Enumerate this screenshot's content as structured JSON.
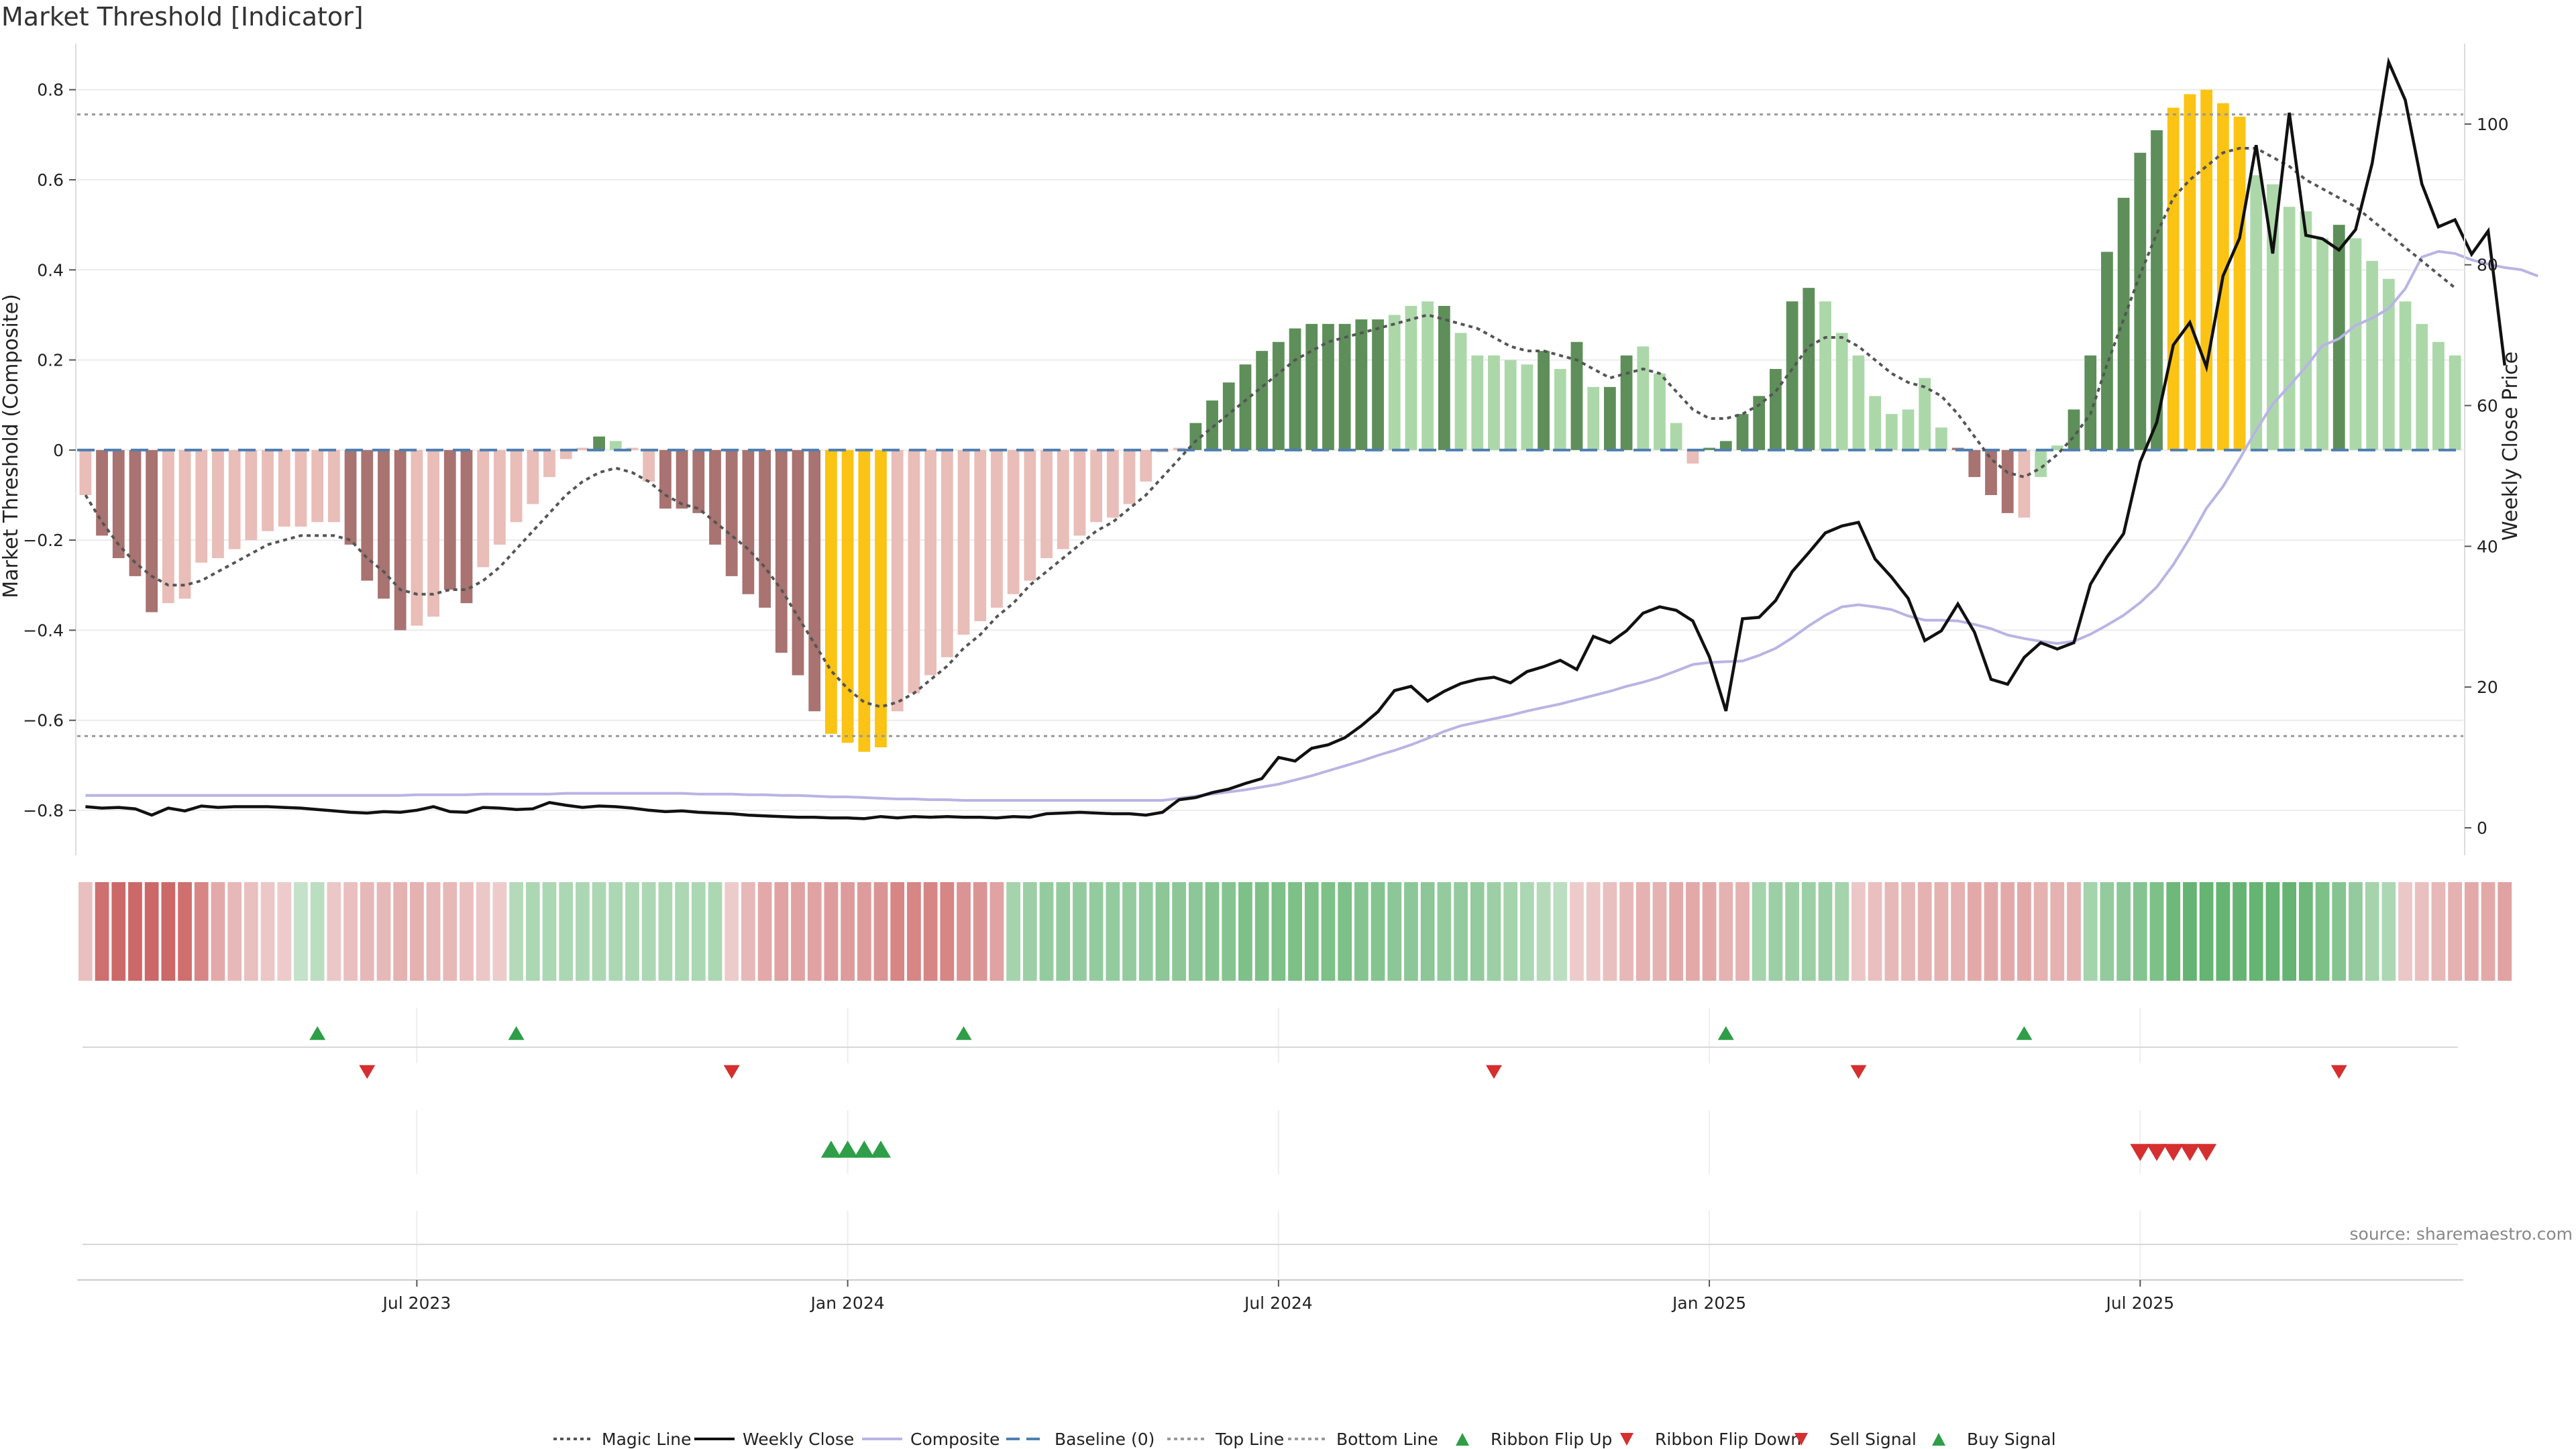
{
  "title": "Market Threshold [Indicator]",
  "source": "source: sharemaestro.com",
  "left_axis": {
    "label": "Market Threshold (Composite)",
    "ticks": [
      "0.8",
      "0.6",
      "0.4",
      "0.2",
      "0",
      "−0.2",
      "−0.4",
      "−0.6",
      "−0.8"
    ],
    "tick_values": [
      0.8,
      0.6,
      0.4,
      0.2,
      0,
      -0.2,
      -0.4,
      -0.6,
      -0.8
    ],
    "ylim": [
      -0.87,
      0.88
    ]
  },
  "right_axis": {
    "label": "Weekly Close Price",
    "ticks": [
      "100",
      "80",
      "60",
      "40",
      "20",
      "0"
    ],
    "tick_values": [
      100,
      80,
      60,
      40,
      20,
      0
    ],
    "ylim": [
      -2,
      110
    ]
  },
  "x_axis": {
    "ticks": [
      "Jul 2023",
      "Jan 2024",
      "Jul 2024",
      "Jan 2025",
      "Jul 2025"
    ],
    "tick_index": [
      20.5,
      46.5,
      72.5,
      98.5,
      124.5
    ]
  },
  "legend": [
    {
      "label": "Magic Line",
      "kind": "dotted",
      "color": "#555555"
    },
    {
      "label": "Weekly Close",
      "kind": "solid",
      "color": "#111111"
    },
    {
      "label": "Composite",
      "kind": "solid",
      "color": "#b8b4e4"
    },
    {
      "label": "Baseline (0)",
      "kind": "dashed",
      "color": "#4f7fb0"
    },
    {
      "label": "Top Line",
      "kind": "dotted",
      "color": "#999999"
    },
    {
      "label": "Bottom Line",
      "kind": "dotted",
      "color": "#999999"
    },
    {
      "label": "Ribbon Flip Up",
      "kind": "tri-up",
      "color": "#2e9e48"
    },
    {
      "label": "Ribbon Flip Down",
      "kind": "tri-down",
      "color": "#d62f2f"
    },
    {
      "label": "Sell Signal",
      "kind": "tri-down",
      "color": "#d62f2f"
    },
    {
      "label": "Buy Signal",
      "kind": "tri-up",
      "color": "#2e9e48"
    }
  ],
  "colors": {
    "dark_red": "#a87370",
    "light_red": "#e9bdb8",
    "dark_green": "#5e8f5a",
    "light_green": "#acd8a9",
    "gold": "#fbc313",
    "magic": "#555555",
    "close": "#111111",
    "composite": "#b8b4e4",
    "baseline": "#4f7fb0",
    "grid": "#ececec"
  },
  "chart_data": {
    "type": "bar",
    "top_line": 0.745,
    "bottom_line": -0.635,
    "baseline": 0,
    "histogram": [
      -0.1,
      -0.19,
      -0.24,
      -0.28,
      -0.36,
      -0.34,
      -0.33,
      -0.25,
      -0.24,
      -0.22,
      -0.2,
      -0.18,
      -0.17,
      -0.17,
      -0.16,
      -0.16,
      -0.21,
      -0.29,
      -0.33,
      -0.4,
      -0.39,
      -0.37,
      -0.31,
      -0.34,
      -0.26,
      -0.21,
      -0.16,
      -0.12,
      -0.06,
      -0.02,
      0.005,
      0.03,
      0.02,
      0.005,
      -0.07,
      -0.13,
      -0.13,
      -0.14,
      -0.21,
      -0.28,
      -0.32,
      -0.35,
      -0.45,
      -0.5,
      -0.58,
      -0.63,
      -0.65,
      -0.67,
      -0.66,
      -0.58,
      -0.54,
      -0.5,
      -0.46,
      -0.41,
      -0.38,
      -0.35,
      -0.32,
      -0.29,
      -0.24,
      -0.22,
      -0.19,
      -0.16,
      -0.15,
      -0.12,
      -0.07,
      -0.005,
      0.005,
      0.06,
      0.11,
      0.15,
      0.19,
      0.22,
      0.24,
      0.27,
      0.28,
      0.28,
      0.28,
      0.29,
      0.29,
      0.3,
      0.32,
      0.33,
      0.32,
      0.26,
      0.21,
      0.21,
      0.2,
      0.19,
      0.22,
      0.18,
      0.24,
      0.14,
      0.14,
      0.21,
      0.23,
      0.17,
      0.06,
      -0.03,
      0.005,
      0.02,
      0.08,
      0.12,
      0.18,
      0.33,
      0.36,
      0.33,
      0.26,
      0.21,
      0.12,
      0.08,
      0.09,
      0.16,
      0.05,
      0.005,
      -0.06,
      -0.1,
      -0.14,
      -0.15,
      -0.06,
      0.01,
      0.09,
      0.21,
      0.44,
      0.56,
      0.66,
      0.71,
      0.76,
      0.79,
      0.8,
      0.77,
      0.74,
      0.61,
      0.59,
      0.54,
      0.53,
      0.47,
      0.5,
      0.47,
      0.42,
      0.38,
      0.33,
      0.28,
      0.24,
      0.21
    ],
    "histogram_colors": [
      "L",
      "D",
      "D",
      "D",
      "D",
      "L",
      "L",
      "L",
      "L",
      "L",
      "L",
      "L",
      "L",
      "L",
      "L",
      "L",
      "D",
      "D",
      "D",
      "D",
      "L",
      "L",
      "D",
      "D",
      "L",
      "L",
      "L",
      "L",
      "L",
      "L",
      "L",
      "DG",
      "LG",
      "L",
      "L",
      "D",
      "D",
      "D",
      "D",
      "D",
      "D",
      "D",
      "D",
      "D",
      "D",
      "Y",
      "Y",
      "Y",
      "Y",
      "L",
      "L",
      "L",
      "L",
      "L",
      "L",
      "L",
      "L",
      "L",
      "L",
      "L",
      "L",
      "L",
      "L",
      "L",
      "L",
      "L",
      "L",
      "DG",
      "DG",
      "DG",
      "DG",
      "DG",
      "DG",
      "DG",
      "DG",
      "DG",
      "DG",
      "DG",
      "DG",
      "LG",
      "LG",
      "LG",
      "DG",
      "LG",
      "LG",
      "LG",
      "LG",
      "LG",
      "DG",
      "LG",
      "DG",
      "LG",
      "DG",
      "DG",
      "LG",
      "LG",
      "LG",
      "L",
      "DG",
      "DG",
      "DG",
      "DG",
      "DG",
      "DG",
      "DG",
      "LG",
      "LG",
      "LG",
      "LG",
      "LG",
      "LG",
      "LG",
      "LG",
      "D",
      "D",
      "D",
      "D",
      "L",
      "LG",
      "LG",
      "DG",
      "DG",
      "DG",
      "DG",
      "DG",
      "DG",
      "Y",
      "Y",
      "Y",
      "Y",
      "Y",
      "LG",
      "LG",
      "LG",
      "LG",
      "LG",
      "DG",
      "LG",
      "LG",
      "LG",
      "LG",
      "LG",
      "LG",
      "LG",
      "LG"
    ],
    "magic_line": [
      -0.1,
      -0.16,
      -0.21,
      -0.25,
      -0.28,
      -0.3,
      -0.3,
      -0.29,
      -0.27,
      -0.25,
      -0.23,
      -0.21,
      -0.2,
      -0.19,
      -0.19,
      -0.19,
      -0.2,
      -0.24,
      -0.27,
      -0.31,
      -0.32,
      -0.32,
      -0.31,
      -0.31,
      -0.29,
      -0.26,
      -0.22,
      -0.18,
      -0.14,
      -0.1,
      -0.07,
      -0.05,
      -0.04,
      -0.05,
      -0.07,
      -0.1,
      -0.12,
      -0.13,
      -0.16,
      -0.19,
      -0.22,
      -0.26,
      -0.31,
      -0.37,
      -0.43,
      -0.49,
      -0.53,
      -0.56,
      -0.57,
      -0.56,
      -0.54,
      -0.51,
      -0.48,
      -0.44,
      -0.41,
      -0.37,
      -0.34,
      -0.3,
      -0.27,
      -0.24,
      -0.21,
      -0.18,
      -0.16,
      -0.13,
      -0.1,
      -0.06,
      -0.02,
      0.02,
      0.05,
      0.08,
      0.11,
      0.14,
      0.17,
      0.2,
      0.22,
      0.24,
      0.25,
      0.26,
      0.27,
      0.28,
      0.29,
      0.3,
      0.29,
      0.28,
      0.27,
      0.25,
      0.23,
      0.22,
      0.22,
      0.21,
      0.2,
      0.18,
      0.16,
      0.17,
      0.18,
      0.17,
      0.13,
      0.09,
      0.07,
      0.07,
      0.08,
      0.1,
      0.13,
      0.18,
      0.23,
      0.25,
      0.25,
      0.23,
      0.2,
      0.17,
      0.15,
      0.14,
      0.12,
      0.08,
      0.03,
      -0.02,
      -0.05,
      -0.06,
      -0.04,
      -0.01,
      0.03,
      0.08,
      0.19,
      0.29,
      0.39,
      0.48,
      0.56,
      0.6,
      0.63,
      0.66,
      0.67,
      0.67,
      0.65,
      0.63,
      0.6,
      0.58,
      0.56,
      0.54,
      0.51,
      0.48,
      0.45,
      0.42,
      0.39,
      0.36
    ],
    "weekly_close": [
      3,
      2.8,
      2.9,
      2.7,
      1.8,
      2.8,
      2.4,
      3.1,
      2.9,
      3,
      3,
      3,
      2.9,
      2.8,
      2.6,
      2.4,
      2.2,
      2.1,
      2.3,
      2.2,
      2.5,
      3,
      2.3,
      2.2,
      2.9,
      2.8,
      2.6,
      2.7,
      3.6,
      3.2,
      2.9,
      3.1,
      3,
      2.8,
      2.5,
      2.3,
      2.4,
      2.2,
      2.1,
      2,
      1.8,
      1.7,
      1.6,
      1.5,
      1.5,
      1.4,
      1.4,
      1.3,
      1.6,
      1.4,
      1.6,
      1.5,
      1.6,
      1.5,
      1.5,
      1.4,
      1.6,
      1.5,
      2,
      2.1,
      2.2,
      2.1,
      2,
      2,
      1.8,
      2.2,
      4,
      4.3,
      5,
      5.5,
      6.3,
      7,
      10,
      9.5,
      11.3,
      11.8,
      12.8,
      14.5,
      16.5,
      19.5,
      20.1,
      18,
      19.4,
      20.5,
      21.1,
      21.4,
      20.6,
      22.2,
      22.9,
      23.8,
      22.5,
      27.2,
      26.3,
      28,
      30.5,
      31.4,
      30.9,
      29.4,
      24.3,
      16.6,
      29.7,
      29.9,
      32.3,
      36.4,
      39.1,
      41.9,
      42.9,
      43.4,
      38.2,
      35.6,
      32.6,
      26.6,
      28,
      31.8,
      27.8,
      21.1,
      20.4,
      24.2,
      26.3,
      25.4,
      26.3,
      34.6,
      38.5,
      41.8,
      52,
      57.6,
      68.6,
      71.8,
      65.5,
      78.4,
      83.8,
      97,
      81.6,
      101.6,
      84.2,
      83.7,
      82.1,
      85,
      94.4,
      108.8,
      103.4,
      91.5,
      85.4,
      86.4,
      81.5,
      84.8,
      65.7
    ],
    "composite_price": [
      4.6,
      4.6,
      4.6,
      4.6,
      4.6,
      4.6,
      4.6,
      4.6,
      4.6,
      4.6,
      4.6,
      4.6,
      4.6,
      4.6,
      4.6,
      4.6,
      4.6,
      4.6,
      4.6,
      4.6,
      4.7,
      4.7,
      4.7,
      4.7,
      4.8,
      4.8,
      4.8,
      4.8,
      4.8,
      4.9,
      4.9,
      4.9,
      4.9,
      4.9,
      4.9,
      4.9,
      4.9,
      4.8,
      4.8,
      4.8,
      4.7,
      4.7,
      4.6,
      4.6,
      4.5,
      4.4,
      4.4,
      4.3,
      4.2,
      4.1,
      4.1,
      4,
      4,
      3.9,
      3.9,
      3.9,
      3.9,
      3.9,
      3.9,
      3.9,
      3.9,
      3.9,
      3.9,
      3.9,
      3.9,
      3.9,
      4.2,
      4.5,
      4.8,
      5.1,
      5.4,
      5.8,
      6.2,
      6.8,
      7.4,
      8.1,
      8.8,
      9.5,
      10.3,
      11,
      11.8,
      12.7,
      13.7,
      14.5,
      15,
      15.5,
      16,
      16.6,
      17.1,
      17.6,
      18.2,
      18.8,
      19.4,
      20.1,
      20.7,
      21.4,
      22.3,
      23.2,
      23.5,
      23.6,
      23.7,
      24.5,
      25.5,
      27,
      28.7,
      30.2,
      31.4,
      31.7,
      31.4,
      31,
      30.1,
      29.5,
      29.5,
      29.4,
      28.9,
      28.3,
      27.4,
      26.9,
      26.5,
      26.2,
      26.5,
      27.5,
      28.8,
      30.2,
      32,
      34.2,
      37.4,
      41.2,
      45.4,
      48.5,
      52.4,
      56.5,
      60.2,
      62.8,
      65.5,
      68.5,
      69.5,
      71.4,
      72.4,
      73.8,
      76.6,
      81.1,
      81.9,
      81.6,
      80.7,
      80.1,
      79.6,
      79.3,
      78.4
    ],
    "ribbon": [
      -0.2,
      -0.75,
      -0.8,
      -0.8,
      -0.8,
      -0.8,
      -0.75,
      -0.6,
      -0.35,
      -0.25,
      -0.2,
      -0.15,
      -0.12,
      0.15,
      0.2,
      -0.15,
      -0.2,
      -0.25,
      -0.25,
      -0.3,
      -0.3,
      -0.25,
      -0.25,
      -0.2,
      -0.15,
      -0.12,
      0.25,
      0.3,
      0.3,
      0.3,
      0.3,
      0.3,
      0.3,
      0.3,
      0.3,
      0.3,
      0.3,
      0.3,
      0.3,
      -0.12,
      -0.25,
      -0.35,
      -0.4,
      -0.4,
      -0.4,
      -0.45,
      -0.45,
      -0.45,
      -0.5,
      -0.6,
      -0.6,
      -0.6,
      -0.6,
      -0.5,
      -0.5,
      -0.4,
      0.35,
      0.4,
      0.45,
      0.45,
      0.45,
      0.45,
      0.45,
      0.45,
      0.45,
      0.5,
      0.5,
      0.5,
      0.55,
      0.55,
      0.6,
      0.6,
      0.6,
      0.6,
      0.6,
      0.6,
      0.6,
      0.55,
      0.55,
      0.5,
      0.5,
      0.5,
      0.45,
      0.45,
      0.45,
      0.4,
      0.35,
      0.3,
      0.25,
      0.2,
      -0.12,
      -0.15,
      -0.2,
      -0.25,
      -0.3,
      -0.3,
      -0.35,
      -0.35,
      -0.35,
      -0.3,
      -0.3,
      0.35,
      0.4,
      0.4,
      0.4,
      0.4,
      0.35,
      -0.15,
      -0.2,
      -0.25,
      -0.25,
      -0.3,
      -0.3,
      -0.3,
      -0.35,
      -0.35,
      -0.35,
      -0.35,
      -0.3,
      -0.3,
      -0.3,
      0.35,
      0.45,
      0.5,
      0.55,
      0.6,
      0.7,
      0.75,
      0.75,
      0.75,
      0.75,
      0.75,
      0.75,
      0.75,
      0.7,
      0.6,
      0.55,
      0.45,
      0.35,
      0.3,
      -0.15,
      -0.2,
      -0.25,
      -0.3,
      -0.35,
      -0.35,
      -0.4
    ],
    "ribbon_flip_up": [
      14,
      26,
      53,
      99,
      117
    ],
    "ribbon_flip_down": [
      17,
      39,
      85,
      107,
      136
    ],
    "buy_signal": [
      45,
      46,
      47,
      48
    ],
    "sell_signal": [
      124,
      125,
      126,
      127,
      128
    ]
  }
}
